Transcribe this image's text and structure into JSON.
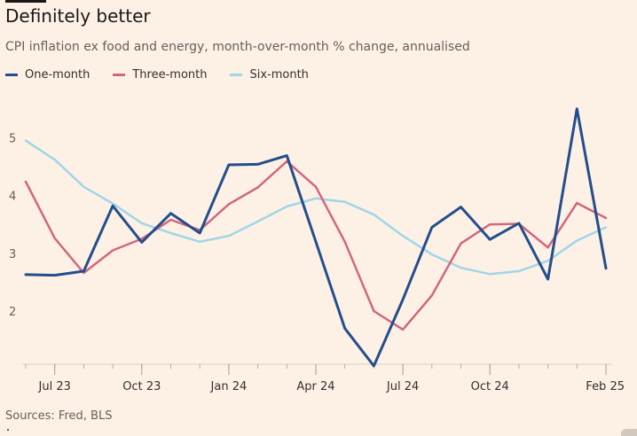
{
  "header": {
    "title": "Definitely better",
    "subtitle": "CPI inflation ex food and energy, month-over-month % change, annualised"
  },
  "legend": {
    "items": [
      {
        "label": "One-month",
        "color": "#234e8c"
      },
      {
        "label": "Three-month",
        "color": "#d0677f"
      },
      {
        "label": "Six-month",
        "color": "#9fd6e8"
      }
    ]
  },
  "footer": {
    "source": "Sources: Fred, BLS"
  },
  "chart_data": {
    "type": "line",
    "x": [
      "2023-06",
      "2023-07",
      "2023-08",
      "2023-09",
      "2023-10",
      "2023-11",
      "2023-12",
      "2024-01",
      "2024-02",
      "2024-03",
      "2024-04",
      "2024-05",
      "2024-06",
      "2024-07",
      "2024-08",
      "2024-09",
      "2024-10",
      "2024-11",
      "2024-12",
      "2025-01",
      "2025-02"
    ],
    "x_ticks": [
      {
        "x": "2023-07",
        "label": "Jul 23"
      },
      {
        "x": "2023-10",
        "label": "Oct 23"
      },
      {
        "x": "2024-01",
        "label": "Jan 24"
      },
      {
        "x": "2024-04",
        "label": "Apr 24"
      },
      {
        "x": "2024-07",
        "label": "Jul 24"
      },
      {
        "x": "2024-10",
        "label": "Oct 24"
      },
      {
        "x": "2025-02",
        "label": "Feb 25"
      }
    ],
    "y_ticks": [
      2,
      3,
      4,
      5
    ],
    "ylim": [
      1.1,
      5.9
    ],
    "grid": false,
    "series": [
      {
        "name": "One-month",
        "color": "#234e8c",
        "values": [
          2.63,
          2.62,
          2.69,
          3.82,
          3.19,
          3.69,
          3.35,
          4.53,
          4.54,
          4.69,
          3.2,
          1.7,
          1.05,
          2.2,
          3.45,
          3.8,
          3.24,
          3.52,
          2.55,
          5.5,
          2.74
        ]
      },
      {
        "name": "Three-month",
        "color": "#d0677f",
        "values": [
          4.24,
          3.26,
          2.66,
          3.05,
          3.25,
          3.58,
          3.4,
          3.85,
          4.14,
          4.59,
          4.15,
          3.2,
          2.0,
          1.68,
          2.27,
          3.17,
          3.5,
          3.51,
          3.1,
          3.87,
          3.61
        ]
      },
      {
        "name": "Six-month",
        "color": "#9fd6e8",
        "values": [
          4.95,
          4.62,
          4.15,
          3.86,
          3.52,
          3.35,
          3.2,
          3.3,
          3.55,
          3.81,
          3.95,
          3.89,
          3.67,
          3.3,
          2.98,
          2.75,
          2.64,
          2.69,
          2.87,
          3.22,
          3.45
        ]
      }
    ]
  }
}
